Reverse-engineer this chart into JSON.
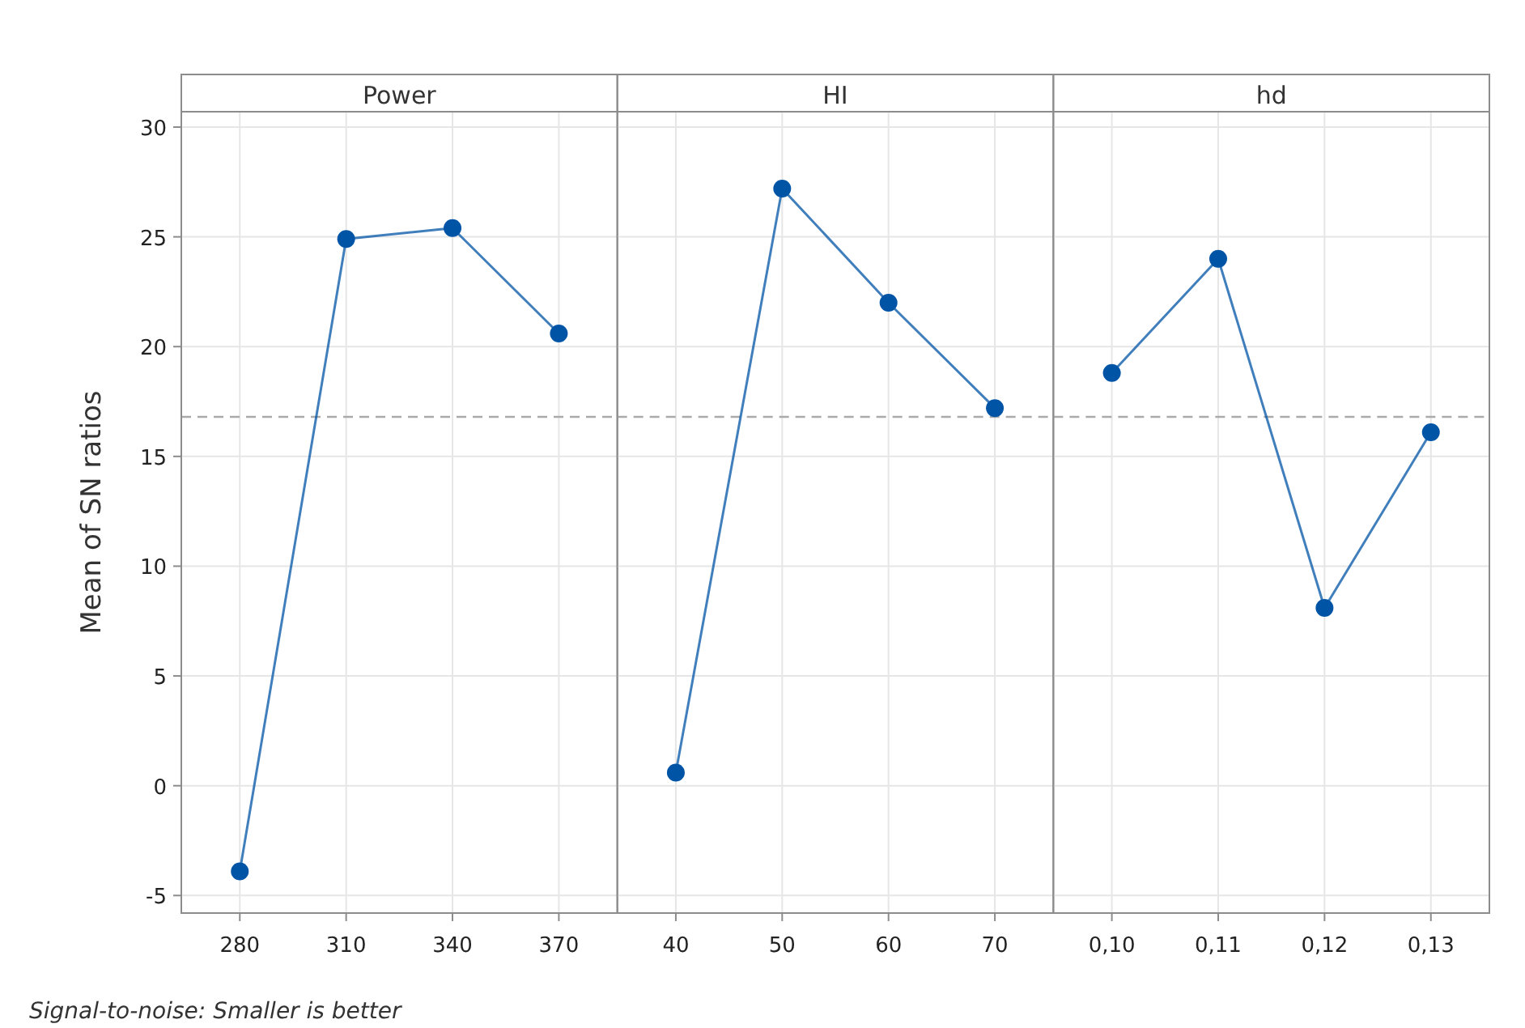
{
  "chart_data": [
    {
      "type": "line",
      "title": "Power",
      "ylabel": "Mean of SN ratios",
      "categories": [
        "280",
        "310",
        "340",
        "370"
      ],
      "series": [
        {
          "color": "#0054a6",
          "values": [
            -3.9,
            24.9,
            25.4,
            20.6
          ]
        }
      ],
      "ylim": [
        -5.8,
        30.7
      ],
      "yticks": [
        -5,
        0,
        5,
        10,
        15,
        20,
        25,
        30
      ],
      "grid": true,
      "marker": "circle",
      "line_style": "solid",
      "ref_lines": [
        {
          "axis": "y",
          "value": 16.8,
          "color": "#aaaaaa",
          "line_style": "dashed"
        }
      ],
      "annotations": [
        "Signal-to-noise: Smaller is better"
      ]
    },
    {
      "type": "line",
      "title": "HI",
      "categories": [
        "40",
        "50",
        "60",
        "70"
      ],
      "series": [
        {
          "color": "#0054a6",
          "values": [
            0.6,
            27.2,
            22.0,
            17.2
          ]
        }
      ],
      "ylim": [
        -5.8,
        30.7
      ],
      "yticks": [
        -5,
        0,
        5,
        10,
        15,
        20,
        25,
        30
      ],
      "tick_labels": "x",
      "grid": true,
      "marker": "circle",
      "line_style": "solid",
      "ref_lines": [
        {
          "axis": "y",
          "value": 16.8,
          "color": "#aaaaaa",
          "line_style": "dashed"
        }
      ]
    },
    {
      "type": "line",
      "title": "hd",
      "categories": [
        "0,10",
        "0,11",
        "0,12",
        "0,13"
      ],
      "series": [
        {
          "color": "#0054a6",
          "values": [
            18.8,
            24.0,
            8.1,
            16.1
          ]
        }
      ],
      "ylim": [
        -5.8,
        30.7
      ],
      "yticks": [
        -5,
        0,
        5,
        10,
        15,
        20,
        25,
        30
      ],
      "tick_labels": "x",
      "grid": true,
      "marker": "circle",
      "line_style": "solid",
      "ref_lines": [
        {
          "axis": "y",
          "value": 16.8,
          "color": "#aaaaaa",
          "line_style": "dashed"
        }
      ]
    }
  ]
}
